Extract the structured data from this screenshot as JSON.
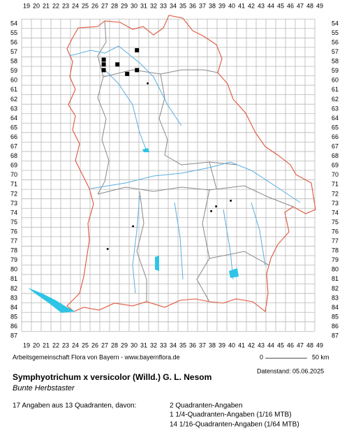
{
  "map": {
    "columns": [
      19,
      20,
      21,
      22,
      23,
      24,
      25,
      26,
      27,
      28,
      29,
      30,
      31,
      32,
      33,
      34,
      35,
      36,
      37,
      38,
      39,
      40,
      41,
      42,
      43,
      44,
      45,
      46,
      47,
      48,
      49
    ],
    "rows": [
      54,
      55,
      56,
      57,
      58,
      59,
      60,
      61,
      62,
      63,
      64,
      65,
      66,
      67,
      68,
      69,
      70,
      71,
      72,
      73,
      74,
      75,
      76,
      77,
      78,
      79,
      80,
      81,
      82,
      83,
      84,
      85,
      86,
      87
    ],
    "records": {
      "x": [
        30.3,
        26.9,
        26.9,
        26.9,
        28.3,
        29.3,
        30.3,
        31.4,
        39.9,
        38.4,
        37.9,
        29.9,
        27.3
      ],
      "y": [
        56.8,
        57.8,
        58.3,
        58.9,
        58.3,
        59.3,
        58.9,
        60.3,
        72.7,
        73.3,
        73.8,
        75.4,
        77.8
      ]
    },
    "credit": "Arbeitsgemeinschaft Flora von Bayern - www.bayernflora.de",
    "scale_start": "0",
    "scale_end": "50 km",
    "date": "Datenstand: 05.06.2025",
    "title": "Symphyotrichum x versicolor (Willd.) G. L. Nesom",
    "subtitle": "Bunte Herbstaster",
    "summary": "17 Angaben aus 13 Quadranten, davon:",
    "counts": [
      "2 Quadranten-Angaben",
      "1 1/4-Quadranten-Angaben (1/16 MTB)",
      "14 1/16-Quadranten-Angaben (1/64 MTB)"
    ]
  }
}
